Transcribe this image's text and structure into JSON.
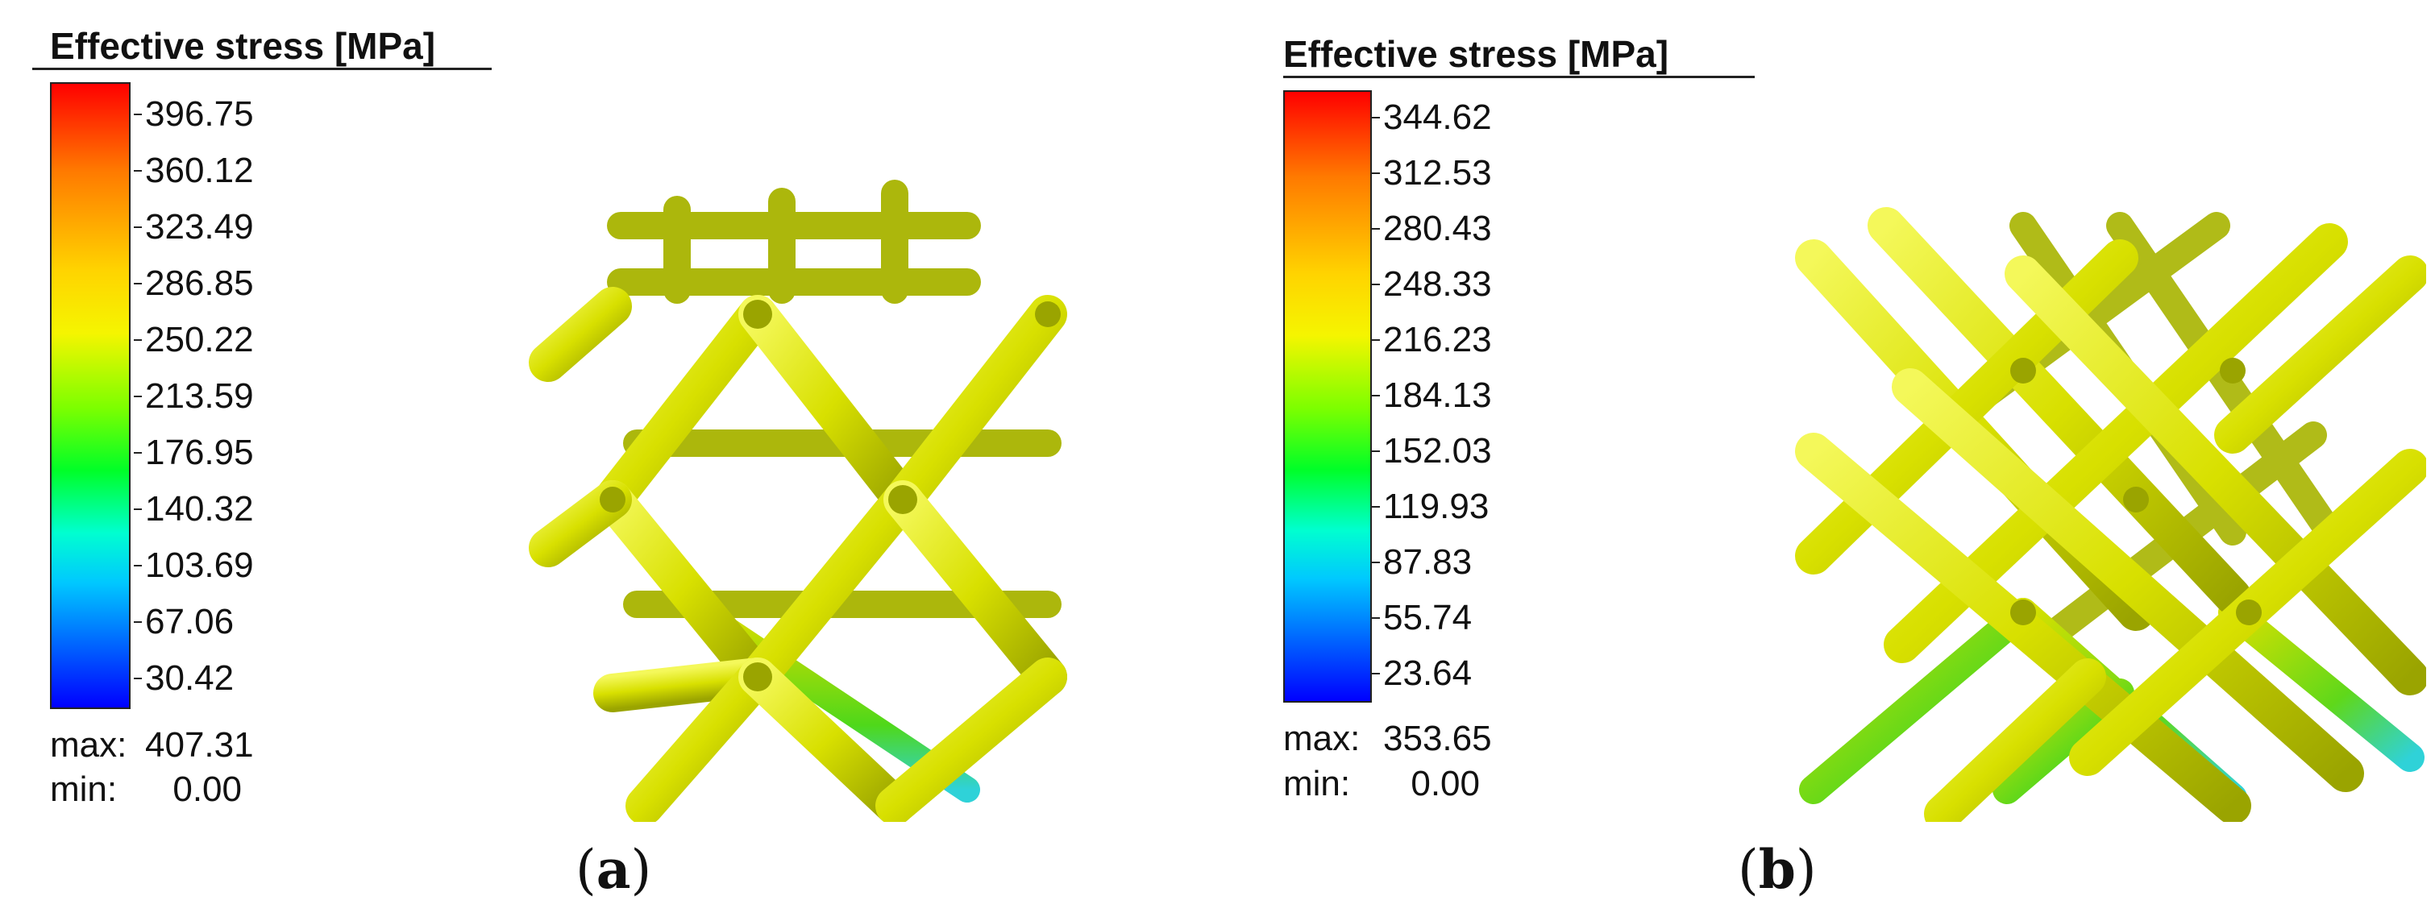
{
  "panels": [
    {
      "label_open": "(",
      "label_letter": "a",
      "label_close": ")",
      "legend": {
        "title": "Effective stress [MPa]",
        "ticks": [
          "396.75",
          "360.12",
          "323.49",
          "286.85",
          "250.22",
          "213.59",
          "176.95",
          "140.32",
          "103.69",
          "67.06",
          "30.42"
        ],
        "max_label": "max:",
        "max_value": "407.31",
        "min_label": "min:",
        "min_value": "0.00"
      }
    },
    {
      "label_open": "(",
      "label_letter": "b",
      "label_close": ")",
      "legend": {
        "title": "Effective stress [MPa]",
        "ticks": [
          "344.62",
          "312.53",
          "280.43",
          "248.33",
          "216.23",
          "184.13",
          "152.03",
          "119.93",
          "87.83",
          "55.74",
          "23.64"
        ],
        "max_label": "max:",
        "max_value": "353.65",
        "min_label": "min:",
        "min_value": "0.00"
      }
    }
  ],
  "colors": {
    "strut_yellow": "#d8e000",
    "strut_highlight": "#f4f85a",
    "strut_shadow": "#9aa400",
    "strut_green": "#4fd81a",
    "strut_cyan": "#2fd2d8"
  }
}
